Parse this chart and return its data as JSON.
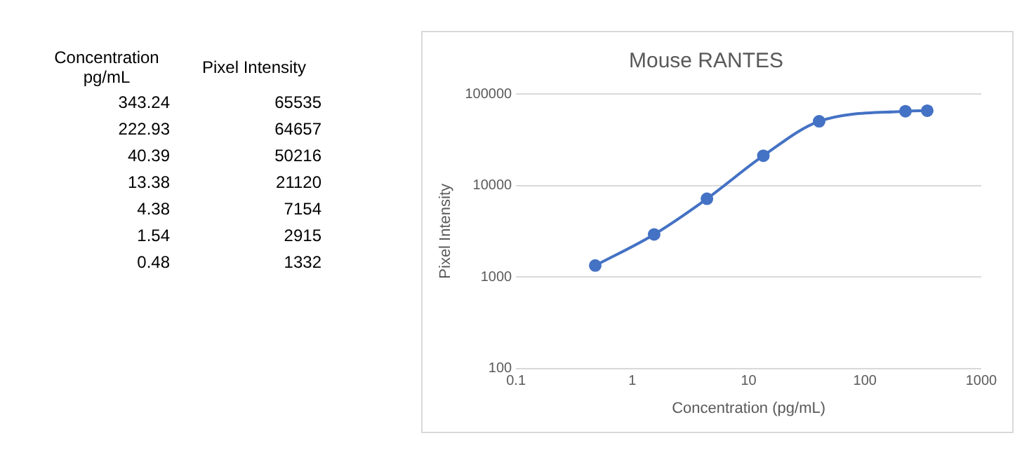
{
  "chart_data": [
    {
      "type": "other",
      "annotations": [
        "Concentration pg/mL",
        "Pixel Intensity",
        "343.24",
        "65535",
        "222.93",
        "64657",
        "40.39",
        "50216",
        "13.38",
        "21120",
        "4.38",
        "7154",
        "1.54",
        "2915",
        "0.48",
        "1332"
      ]
    },
    {
      "type": "line",
      "title": "Mouse RANTES",
      "xlabel": "Concentration (pg/mL)",
      "ylabel": "Pixel Intensity",
      "x": [
        343.24,
        222.93,
        40.39,
        13.38,
        4.38,
        1.54,
        0.48
      ],
      "series": [
        {
          "color": "#4472c4",
          "values": [
            65535,
            64657,
            50216,
            21120,
            7154,
            2915,
            1332
          ]
        }
      ],
      "log": "xy",
      "xlim": [
        0.1,
        1000
      ],
      "xticks": [
        0.1,
        1,
        10,
        100,
        1000
      ],
      "ylim": [
        100,
        100000
      ],
      "yticks": [
        100,
        1000,
        10000,
        100000
      ],
      "grid": "y",
      "marker": "circle",
      "line_style": "solid"
    }
  ]
}
